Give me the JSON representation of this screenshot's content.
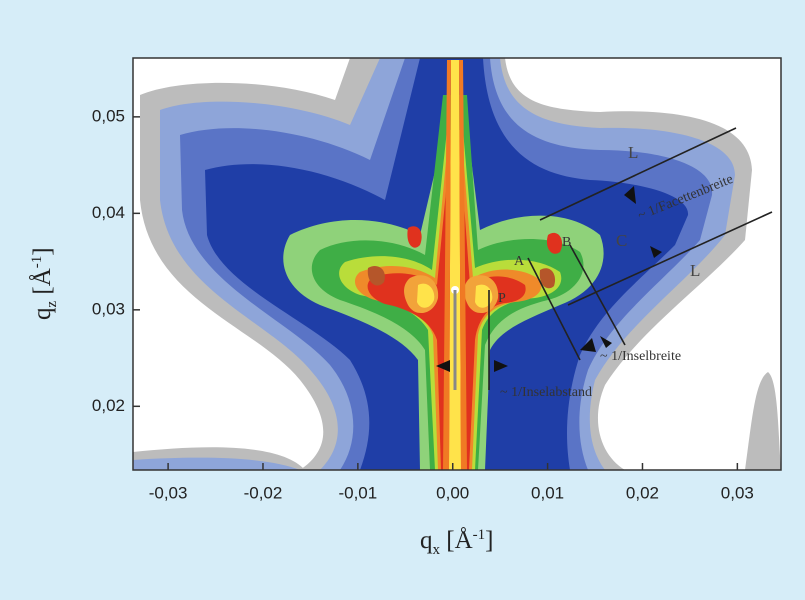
{
  "chart_data": {
    "type": "contour",
    "x_label": {
      "base": "q",
      "sub": "x",
      "unit": " [Å",
      "sup": "-1",
      "close": "]"
    },
    "y_label": {
      "base": "q",
      "sub": "z",
      "unit": " [Å",
      "sup": "-1",
      "close": "]"
    },
    "xlim": [
      -0.0337,
      0.0346
    ],
    "ylim": [
      0.0134,
      0.0561
    ],
    "xticks": [
      {
        "value": -0.03,
        "label": "-0,03"
      },
      {
        "value": -0.02,
        "label": "-0,02"
      },
      {
        "value": -0.01,
        "label": "-0,01"
      },
      {
        "value": 0,
        "label": "0,00"
      },
      {
        "value": 0.01,
        "label": "0,01"
      },
      {
        "value": 0.02,
        "label": "0,02"
      },
      {
        "value": 0.03,
        "label": "0,03"
      }
    ],
    "yticks": [
      {
        "value": 0.02,
        "label": "0,02"
      },
      {
        "value": 0.03,
        "label": "0,03"
      },
      {
        "value": 0.04,
        "label": "0,04"
      },
      {
        "value": 0.05,
        "label": "0,05"
      }
    ],
    "annotations": [
      "L",
      "~ 1/Facettenbreite",
      "C",
      "B",
      "A",
      "P",
      "L",
      "~ 1/Inselbreite",
      "~ 1/Inselabstand"
    ]
  }
}
